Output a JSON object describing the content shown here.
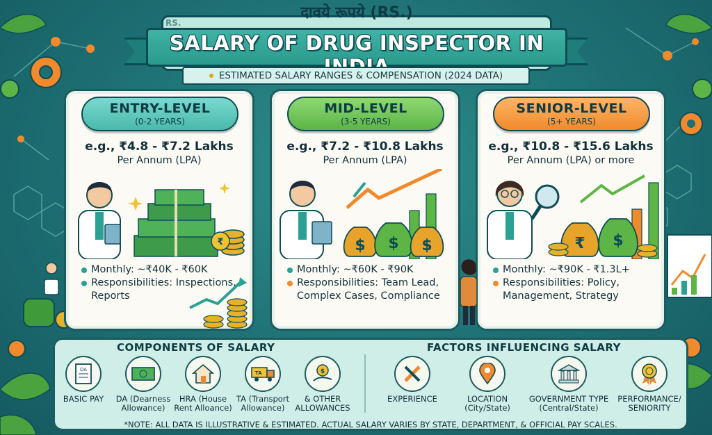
{
  "header": {
    "hindi_title": "दावये रूपये (RS.)",
    "rs_tag": "RS.",
    "title": "SALARY OF DRUG INSPECTOR IN INDIA",
    "subtitle": "ESTIMATED SALARY RANGES & COMPENSATION (2024 DATA)"
  },
  "levels": [
    {
      "name": "ENTRY-LEVEL",
      "years": "(0-2 YEARS)",
      "range": "e.g., ₹4.8 - ₹7.2 Lakhs",
      "per_annum": "Per Annum (LPA)",
      "monthly": "Monthly: ~₹40K - ₹60K",
      "responsibilities": "Responsibilities: Inspections, Reports",
      "color": "#49b9ab"
    },
    {
      "name": "MID-LEVEL",
      "years": "(3-5 YEARS)",
      "range": "e.g., ₹7.2 - ₹10.8 Lakhs",
      "per_annum": "Per Annum (LPA)",
      "monthly": "Monthly: ~₹60K - ₹90K",
      "responsibilities": "Responsibilities: Team Lead, Complex Cases, Compliance",
      "color": "#5cb545"
    },
    {
      "name": "SENIOR-LEVEL",
      "years": "(5+ YEARS)",
      "range": "e.g., ₹10.8 - ₹15.6 Lakhs",
      "per_annum": "Per Annum (LPA) or more",
      "monthly": "Monthly: ~₹90K - ₹1.3L+",
      "responsibilities": "Responsibilities: Policy, Management, Strategy",
      "color": "#f08a2c"
    }
  ],
  "components": {
    "title": "COMPONENTS OF SALARY",
    "items": [
      {
        "label": "BASIC PAY",
        "icon": "document-icon"
      },
      {
        "label": "DA (Dearness Allowance)",
        "icon": "banknote-icon"
      },
      {
        "label": "HRA (House Rent Alloance)",
        "icon": "house-icon"
      },
      {
        "label": "TA (Transport Allowance)",
        "icon": "truck-icon"
      },
      {
        "label": "& OTHER ALLOWANCES",
        "icon": "coin-hand-icon"
      }
    ]
  },
  "factors": {
    "title": "FACTORS INFLUENCING SALARY",
    "items": [
      {
        "label": "EXPERIENCE",
        "icon": "tools-icon"
      },
      {
        "label": "LOCATION (City/State)",
        "icon": "location-pin-icon"
      },
      {
        "label": "GOVERNMENT TYPE (Central/State)",
        "icon": "government-building-icon"
      },
      {
        "label": "PERFORMANCE/ SENIORITY",
        "icon": "medal-icon"
      }
    ]
  },
  "icon_labels": {
    "da_note": "DA",
    "ta_truck": "TA",
    "rupee": "₹",
    "dollar": "$"
  },
  "note": "*NOTE: ALL DATA IS ILLUSTRATIVE & ESTIMATED. ACTUAL SALARY VARIES BY STATE, DEPARTMENT, & OFFICIAL PAY SCALES."
}
